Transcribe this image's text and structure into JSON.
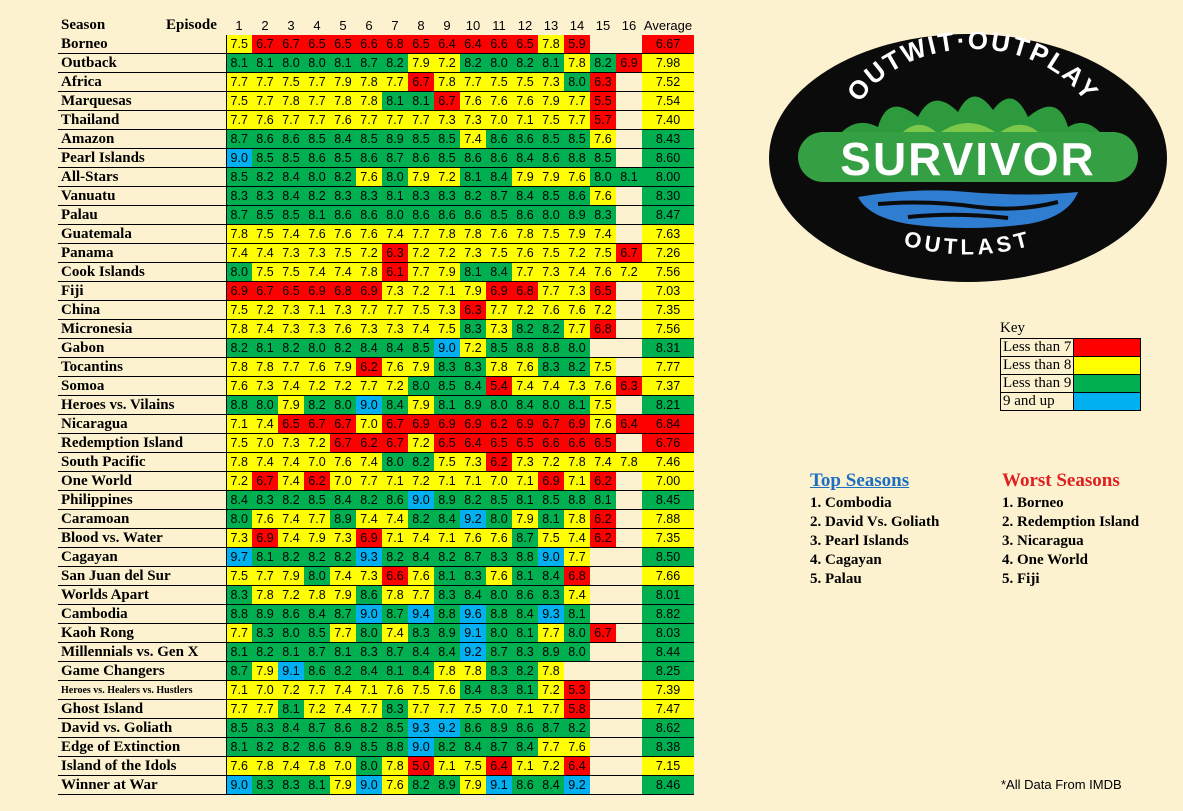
{
  "chart_data": {
    "type": "heatmap",
    "header": {
      "season": "Season",
      "episode": "Episode",
      "average": "Average"
    },
    "episodes": [
      "1",
      "2",
      "3",
      "4",
      "5",
      "6",
      "7",
      "8",
      "9",
      "10",
      "11",
      "12",
      "13",
      "14",
      "15",
      "16"
    ],
    "seasons": [
      {
        "name": "Borneo",
        "scores": [
          "7.5",
          "6.7",
          "6.7",
          "6.5",
          "6.5",
          "6.6",
          "6.8",
          "6.5",
          "6.4",
          "6.4",
          "6.6",
          "6.5",
          "7.8",
          "5.9",
          "",
          ""
        ],
        "average": "6.67"
      },
      {
        "name": "Outback",
        "scores": [
          "8.1",
          "8.1",
          "8.0",
          "8.0",
          "8.1",
          "8.7",
          "8.2",
          "7.9",
          "7.2",
          "8.2",
          "8.0",
          "8.2",
          "8.1",
          "7.8",
          "8.2",
          "6.9"
        ],
        "average": "7.98"
      },
      {
        "name": "Africa",
        "scores": [
          "7.7",
          "7.7",
          "7.5",
          "7.7",
          "7.9",
          "7.8",
          "7.7",
          "6.7",
          "7.8",
          "7.7",
          "7.5",
          "7.5",
          "7.3",
          "8.0",
          "6.3",
          ""
        ],
        "average": "7.52"
      },
      {
        "name": "Marquesas",
        "scores": [
          "7.5",
          "7.7",
          "7.8",
          "7.7",
          "7.8",
          "7.8",
          "8.1",
          "8.1",
          "6.7",
          "7.6",
          "7.6",
          "7.6",
          "7.9",
          "7.7",
          "5.5",
          ""
        ],
        "average": "7.54"
      },
      {
        "name": "Thailand",
        "scores": [
          "7.7",
          "7.6",
          "7.7",
          "7.7",
          "7.6",
          "7.7",
          "7.7",
          "7.7",
          "7.3",
          "7.3",
          "7.0",
          "7.1",
          "7.5",
          "7.7",
          "5.7",
          ""
        ],
        "average": "7.40"
      },
      {
        "name": "Amazon",
        "scores": [
          "8.7",
          "8.6",
          "8.6",
          "8.5",
          "8.4",
          "8.5",
          "8.9",
          "8.5",
          "8.5",
          "7.4",
          "8.6",
          "8.6",
          "8.5",
          "8.5",
          "7.6",
          ""
        ],
        "average": "8.43"
      },
      {
        "name": "Pearl Islands",
        "scores": [
          "9.0",
          "8.5",
          "8.5",
          "8.6",
          "8.5",
          "8.6",
          "8.7",
          "8.6",
          "8.5",
          "8.6",
          "8.6",
          "8.4",
          "8.6",
          "8.8",
          "8.5",
          ""
        ],
        "average": "8.60"
      },
      {
        "name": "All-Stars",
        "scores": [
          "8.5",
          "8.2",
          "8.4",
          "8.0",
          "8.2",
          "7.6",
          "8.0",
          "7.9",
          "7.2",
          "8.1",
          "8.4",
          "7.9",
          "7.9",
          "7.6",
          "8.0",
          "8.1"
        ],
        "average": "8.00"
      },
      {
        "name": "Vanuatu",
        "scores": [
          "8.3",
          "8.3",
          "8.4",
          "8.2",
          "8.3",
          "8.3",
          "8.1",
          "8.3",
          "8.3",
          "8.2",
          "8.7",
          "8.4",
          "8.5",
          "8.6",
          "7.6",
          ""
        ],
        "average": "8.30"
      },
      {
        "name": "Palau",
        "scores": [
          "8.7",
          "8.5",
          "8.5",
          "8.1",
          "8.6",
          "8.6",
          "8.0",
          "8.6",
          "8.6",
          "8.6",
          "8.5",
          "8.6",
          "8.0",
          "8.9",
          "8.3",
          ""
        ],
        "average": "8.47"
      },
      {
        "name": "Guatemala",
        "scores": [
          "7.8",
          "7.5",
          "7.4",
          "7.6",
          "7.6",
          "7.6",
          "7.4",
          "7.7",
          "7.8",
          "7.8",
          "7.6",
          "7.8",
          "7.5",
          "7.9",
          "7.4",
          ""
        ],
        "average": "7.63"
      },
      {
        "name": "Panama",
        "scores": [
          "7.4",
          "7.4",
          "7.3",
          "7.3",
          "7.5",
          "7.2",
          "6.3",
          "7.2",
          "7.2",
          "7.3",
          "7.5",
          "7.6",
          "7.5",
          "7.2",
          "7.5",
          "6.7"
        ],
        "average": "7.26"
      },
      {
        "name": "Cook Islands",
        "scores": [
          "8.0",
          "7.5",
          "7.5",
          "7.4",
          "7.4",
          "7.8",
          "6.1",
          "7.7",
          "7.9",
          "8.1",
          "8.4",
          "7.7",
          "7.3",
          "7.4",
          "7.6",
          "7.2"
        ],
        "average": "7.56"
      },
      {
        "name": "Fiji",
        "scores": [
          "6.9",
          "6.7",
          "6.5",
          "6.9",
          "6.8",
          "6.9",
          "7.3",
          "7.2",
          "7.1",
          "7.9",
          "6.9",
          "6.8",
          "7.7",
          "7.3",
          "6.5",
          ""
        ],
        "average": "7.03"
      },
      {
        "name": "China",
        "scores": [
          "7.5",
          "7.2",
          "7.3",
          "7.1",
          "7.3",
          "7.7",
          "7.7",
          "7.5",
          "7.3",
          "6.3",
          "7.7",
          "7.2",
          "7.6",
          "7.6",
          "7.2",
          ""
        ],
        "average": "7.35"
      },
      {
        "name": "Micronesia",
        "scores": [
          "7.8",
          "7.4",
          "7.3",
          "7.3",
          "7.6",
          "7.3",
          "7.3",
          "7.4",
          "7.5",
          "8.3",
          "7.3",
          "8.2",
          "8.2",
          "7.7",
          "6.8",
          ""
        ],
        "average": "7.56"
      },
      {
        "name": "Gabon",
        "scores": [
          "8.2",
          "8.1",
          "8.2",
          "8.0",
          "8.2",
          "8.4",
          "8.4",
          "8.5",
          "9.0",
          "7.2",
          "8.5",
          "8.8",
          "8.8",
          "8.0",
          "",
          ""
        ],
        "average": "8.31"
      },
      {
        "name": "Tocantins",
        "scores": [
          "7.8",
          "7.8",
          "7.7",
          "7.6",
          "7.9",
          "6.2",
          "7.6",
          "7.9",
          "8.3",
          "8.3",
          "7.8",
          "7.6",
          "8.3",
          "8.2",
          "7.5",
          ""
        ],
        "average": "7.77"
      },
      {
        "name": "Somoa",
        "scores": [
          "7.6",
          "7.3",
          "7.4",
          "7.2",
          "7.2",
          "7.7",
          "7.2",
          "8.0",
          "8.5",
          "8.4",
          "5.4",
          "7.4",
          "7.4",
          "7.3",
          "7.6",
          "6.3"
        ],
        "average": "7.37"
      },
      {
        "name": "Heroes vs. Vilains",
        "scores": [
          "8.8",
          "8.0",
          "7.9",
          "8.2",
          "8.0",
          "9.0",
          "8.4",
          "7.9",
          "8.1",
          "8.9",
          "8.0",
          "8.4",
          "8.0",
          "8.1",
          "7.5",
          ""
        ],
        "average": "8.21"
      },
      {
        "name": "Nicaragua",
        "scores": [
          "7.1",
          "7.4",
          "6.5",
          "6.7",
          "6.7",
          "7.0",
          "6.7",
          "6.9",
          "6.9",
          "6.9",
          "6.2",
          "6.9",
          "6.7",
          "6.9",
          "7.6",
          "6.4"
        ],
        "average": "6.84"
      },
      {
        "name": "Redemption Island",
        "scores": [
          "7.5",
          "7.0",
          "7.3",
          "7.2",
          "6.7",
          "6.2",
          "6.7",
          "7.2",
          "6.5",
          "6.4",
          "6.5",
          "6.5",
          "6.6",
          "6.6",
          "6.5",
          ""
        ],
        "average": "6.76"
      },
      {
        "name": "South Pacific",
        "scores": [
          "7.8",
          "7.4",
          "7.4",
          "7.0",
          "7.6",
          "7.4",
          "8.0",
          "8.2",
          "7.5",
          "7.3",
          "6.2",
          "7.3",
          "7.2",
          "7.8",
          "7.4",
          "7.8"
        ],
        "average": "7.46"
      },
      {
        "name": "One World",
        "scores": [
          "7.2",
          "6.7",
          "7.4",
          "6.2",
          "7.0",
          "7.7",
          "7.1",
          "7.2",
          "7.1",
          "7.1",
          "7.0",
          "7.1",
          "6.9",
          "7.1",
          "6.2",
          ""
        ],
        "average": "7.00"
      },
      {
        "name": "Philippines",
        "scores": [
          "8.4",
          "8.3",
          "8.2",
          "8.5",
          "8.4",
          "8.2",
          "8.6",
          "9.0",
          "8.9",
          "8.2",
          "8.5",
          "8.1",
          "8.5",
          "8.8",
          "8.1",
          ""
        ],
        "average": "8.45"
      },
      {
        "name": "Caramoan",
        "scores": [
          "8.0",
          "7.6",
          "7.4",
          "7.7",
          "8.9",
          "7.4",
          "7.4",
          "8.2",
          "8.4",
          "9.2",
          "8.0",
          "7.9",
          "8.1",
          "7.8",
          "6.2",
          ""
        ],
        "average": "7.88"
      },
      {
        "name": "Blood vs. Water",
        "scores": [
          "7.3",
          "6.9",
          "7.4",
          "7.9",
          "7.3",
          "6.9",
          "7.1",
          "7.4",
          "7.1",
          "7.6",
          "7.6",
          "8.7",
          "7.5",
          "7.4",
          "6.2",
          ""
        ],
        "average": "7.35"
      },
      {
        "name": "Cagayan",
        "scores": [
          "9.7",
          "8.1",
          "8.2",
          "8.2",
          "8.2",
          "9.3",
          "8.2",
          "8.4",
          "8.2",
          "8.7",
          "8.3",
          "8.8",
          "9.0",
          "7.7",
          "",
          ""
        ],
        "average": "8.50"
      },
      {
        "name": "San Juan del Sur",
        "scores": [
          "7.5",
          "7.7",
          "7.9",
          "8.0",
          "7.4",
          "7.3",
          "6.6",
          "7.6",
          "8.1",
          "8.3",
          "7.6",
          "8.1",
          "8.4",
          "6.8",
          "",
          ""
        ],
        "average": "7.66"
      },
      {
        "name": "Worlds Apart",
        "scores": [
          "8.3",
          "7.8",
          "7.2",
          "7.8",
          "7.9",
          "8.6",
          "7.8",
          "7.7",
          "8.3",
          "8.4",
          "8.0",
          "8.6",
          "8.3",
          "7.4",
          "",
          ""
        ],
        "average": "8.01"
      },
      {
        "name": "Cambodia",
        "scores": [
          "8.8",
          "8.9",
          "8.6",
          "8.4",
          "8.7",
          "9.0",
          "8.7",
          "9.4",
          "8.8",
          "9.6",
          "8.8",
          "8.4",
          "9.3",
          "8.1",
          "",
          ""
        ],
        "average": "8.82"
      },
      {
        "name": "Kaoh Rong",
        "scores": [
          "7.7",
          "8.3",
          "8.0",
          "8.5",
          "7.7",
          "8.0",
          "7.4",
          "8.3",
          "8.9",
          "9.1",
          "8.0",
          "8.1",
          "7.7",
          "8.0",
          "6.7",
          ""
        ],
        "average": "8.03"
      },
      {
        "name": "Millennials vs. Gen X",
        "scores": [
          "8.1",
          "8.2",
          "8.1",
          "8.7",
          "8.1",
          "8.3",
          "8.7",
          "8.4",
          "8.4",
          "9.2",
          "8.7",
          "8.3",
          "8.9",
          "8.0",
          "",
          ""
        ],
        "average": "8.44"
      },
      {
        "name": "Game Changers",
        "scores": [
          "8.7",
          "7.9",
          "9.1",
          "8.6",
          "8.2",
          "8.4",
          "8.1",
          "8.4",
          "7.8",
          "7.8",
          "8.3",
          "8.2",
          "7.8",
          "",
          "",
          ""
        ],
        "average": "8.25"
      },
      {
        "name": "Heroes vs. Healers vs. Hustlers",
        "scores": [
          "7.1",
          "7.0",
          "7.2",
          "7.7",
          "7.4",
          "7.1",
          "7.6",
          "7.5",
          "7.6",
          "8.4",
          "8.3",
          "8.1",
          "7.2",
          "5.3",
          "",
          ""
        ],
        "average": "7.39"
      },
      {
        "name": "Ghost Island",
        "scores": [
          "7.7",
          "7.7",
          "8.1",
          "7.2",
          "7.4",
          "7.7",
          "8.3",
          "7.7",
          "7.7",
          "7.5",
          "7.0",
          "7.1",
          "7.7",
          "5.8",
          "",
          ""
        ],
        "average": "7.47"
      },
      {
        "name": "David vs. Goliath",
        "scores": [
          "8.5",
          "8.3",
          "8.4",
          "8.7",
          "8.6",
          "8.2",
          "8.5",
          "9.3",
          "9.2",
          "8.6",
          "8.9",
          "8.6",
          "8.7",
          "8.2",
          "",
          ""
        ],
        "average": "8.62"
      },
      {
        "name": "Edge of Extinction",
        "scores": [
          "8.1",
          "8.2",
          "8.2",
          "8.6",
          "8.9",
          "8.5",
          "8.8",
          "9.0",
          "8.2",
          "8.4",
          "8.7",
          "8.4",
          "7.7",
          "7.6",
          "",
          ""
        ],
        "average": "8.38"
      },
      {
        "name": "Island of the Idols",
        "scores": [
          "7.6",
          "7.8",
          "7.4",
          "7.8",
          "7.0",
          "8.0",
          "7.8",
          "5.0",
          "7.1",
          "7.5",
          "6.4",
          "7.1",
          "7.2",
          "6.4",
          "",
          ""
        ],
        "average": "7.15"
      },
      {
        "name": "Winner at War",
        "scores": [
          "9.0",
          "8.3",
          "8.3",
          "8.1",
          "7.9",
          "9.0",
          "7.6",
          "8.2",
          "8.9",
          "7.9",
          "9.1",
          "8.6",
          "8.4",
          "9.2",
          "",
          ""
        ],
        "average": "8.46"
      }
    ],
    "colors": {
      "red": "#ff0000",
      "yellow": "#ffff00",
      "green": "#00b050",
      "blue": "#00b0f0"
    }
  },
  "logo": {
    "top": "OUTWIT·OUTPLAY",
    "middle": "SURVIVOR",
    "bottom": "OUTLAST"
  },
  "key": {
    "title": "Key",
    "items": [
      {
        "label": "Less than 7",
        "color": "#ff0000"
      },
      {
        "label": "Less than 8",
        "color": "#ffff00"
      },
      {
        "label": "Less than 9",
        "color": "#00b050"
      },
      {
        "label": "9 and up",
        "color": "#00b0f0"
      }
    ]
  },
  "top_seasons": {
    "title": "Top Seasons",
    "items": [
      "1. Combodia",
      "2. David Vs. Goliath",
      "3. Pearl Islands",
      "4. Cagayan",
      "5. Palau"
    ]
  },
  "worst_seasons": {
    "title": "Worst Seasons",
    "items": [
      "1. Borneo",
      "2. Redemption Island",
      "3. Nicaragua",
      "4. One World",
      "5. Fiji"
    ]
  },
  "source": "*All Data From IMDB"
}
